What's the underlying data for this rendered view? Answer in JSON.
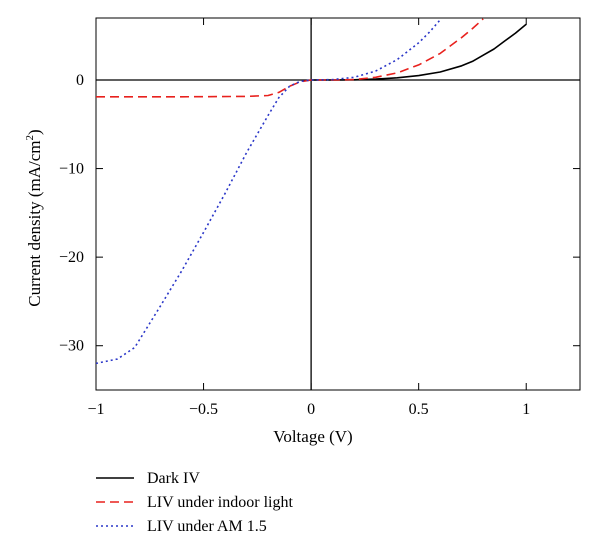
{
  "chart_data": {
    "type": "line",
    "xlabel": "Voltage (V)",
    "ylabel_main": "Current density (mA/cm",
    "ylabel_sup": "2",
    "ylabel_close": ")",
    "xlim": [
      -1,
      1.25
    ],
    "ylim": [
      -35,
      7
    ],
    "xticks": [
      -1,
      -0.5,
      0,
      0.5,
      1
    ],
    "xtick_labels": [
      "−1",
      "−0.5",
      "0",
      "0.5",
      "1"
    ],
    "yticks": [
      -30,
      -20,
      -10,
      0
    ],
    "ytick_labels": [
      "−30",
      "−20",
      "−10",
      "0"
    ],
    "zero_lines": true,
    "legend_position": "bottom-left, below plot",
    "series": [
      {
        "name": "Dark IV",
        "color": "#000000",
        "dash": "solid",
        "x": [
          0,
          0.1,
          0.2,
          0.3,
          0.4,
          0.5,
          0.6,
          0.7,
          0.75,
          0.8,
          0.85,
          0.9,
          0.95,
          1.0
        ],
        "y": [
          0,
          0.0,
          0.02,
          0.1,
          0.25,
          0.5,
          0.9,
          1.6,
          2.1,
          2.8,
          3.5,
          4.4,
          5.3,
          6.3
        ]
      },
      {
        "name": "LIV under indoor light",
        "color": "#e8211d",
        "dash": "dashed",
        "x": [
          -1,
          -0.6,
          -0.3,
          -0.2,
          -0.15,
          -0.1,
          -0.05,
          0,
          0.1,
          0.2,
          0.3,
          0.4,
          0.5,
          0.6,
          0.7,
          0.75,
          0.8
        ],
        "y": [
          -1.9,
          -1.9,
          -1.85,
          -1.75,
          -1.4,
          -0.7,
          -0.2,
          0,
          0.0,
          0.05,
          0.3,
          0.8,
          1.7,
          3.0,
          4.8,
          5.8,
          6.9
        ]
      },
      {
        "name": "LIV under AM 1.5",
        "color": "#2a36c8",
        "dash": "dotted",
        "x": [
          -1,
          -0.9,
          -0.82,
          -0.7,
          -0.6,
          -0.5,
          -0.4,
          -0.3,
          -0.2,
          -0.15,
          -0.1,
          -0.05,
          0,
          0.1,
          0.2,
          0.3,
          0.4,
          0.5,
          0.55,
          0.6
        ],
        "y": [
          -32,
          -31.5,
          -30.2,
          -25.5,
          -21.5,
          -17.2,
          -12.8,
          -8.2,
          -4.0,
          -2.0,
          -0.7,
          -0.15,
          0,
          0.05,
          0.3,
          1.0,
          2.3,
          4.2,
          5.4,
          6.8
        ]
      }
    ]
  }
}
